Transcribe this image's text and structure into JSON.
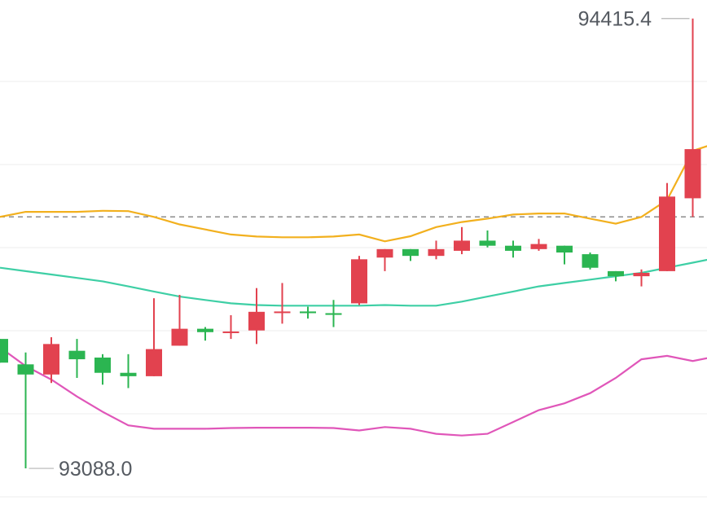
{
  "chart_data": {
    "type": "candlestick",
    "y_range": [
      92980,
      94470
    ],
    "grid": "horizontal",
    "reference_level": 93830,
    "max_label": "94415.4",
    "min_label": "93088.0",
    "colors": {
      "up": "#e2424f",
      "down": "#2bb551",
      "grid": "#eeeeee",
      "reference_line": "#8c8c8c",
      "label_text": "#555a61",
      "upper_band": "#f2b01e",
      "middle_band": "#3ecfa5",
      "lower_band": "#e056b9"
    },
    "candles": [
      {
        "open": 93470,
        "close": 93400,
        "high": 93470,
        "low": 93400
      },
      {
        "open": 93395,
        "close": 93365,
        "high": 93430,
        "low": 93088
      },
      {
        "open": 93365,
        "close": 93455,
        "high": 93475,
        "low": 93340
      },
      {
        "open": 93435,
        "close": 93410,
        "high": 93470,
        "low": 93355
      },
      {
        "open": 93415,
        "close": 93370,
        "high": 93425,
        "low": 93335
      },
      {
        "open": 93370,
        "close": 93360,
        "high": 93425,
        "low": 93325
      },
      {
        "open": 93360,
        "close": 93440,
        "high": 93590,
        "low": 93360
      },
      {
        "open": 93450,
        "close": 93500,
        "high": 93600,
        "low": 93450
      },
      {
        "open": 93500,
        "close": 93490,
        "high": 93505,
        "low": 93465
      },
      {
        "open": 93490,
        "close": 93492,
        "high": 93540,
        "low": 93470
      },
      {
        "open": 93495,
        "close": 93550,
        "high": 93620,
        "low": 93455
      },
      {
        "open": 93550,
        "close": 93551,
        "high": 93635,
        "low": 93515
      },
      {
        "open": 93551,
        "close": 93546,
        "high": 93565,
        "low": 93530
      },
      {
        "open": 93546,
        "close": 93541,
        "high": 93585,
        "low": 93505
      },
      {
        "open": 93575,
        "close": 93705,
        "high": 93715,
        "low": 93570
      },
      {
        "open": 93710,
        "close": 93735,
        "high": 93735,
        "low": 93670
      },
      {
        "open": 93735,
        "close": 93715,
        "high": 93735,
        "low": 93700
      },
      {
        "open": 93715,
        "close": 93735,
        "high": 93760,
        "low": 93705
      },
      {
        "open": 93730,
        "close": 93760,
        "high": 93800,
        "low": 93720
      },
      {
        "open": 93760,
        "close": 93745,
        "high": 93790,
        "low": 93740
      },
      {
        "open": 93745,
        "close": 93730,
        "high": 93760,
        "low": 93710
      },
      {
        "open": 93735,
        "close": 93750,
        "high": 93765,
        "low": 93730
      },
      {
        "open": 93745,
        "close": 93725,
        "high": 93745,
        "low": 93690
      },
      {
        "open": 93720,
        "close": 93680,
        "high": 93725,
        "low": 93675
      },
      {
        "open": 93670,
        "close": 93655,
        "high": 93670,
        "low": 93640
      },
      {
        "open": 93655,
        "close": 93665,
        "high": 93675,
        "low": 93625
      },
      {
        "open": 93670,
        "close": 93890,
        "high": 93930,
        "low": 93670
      },
      {
        "open": 93885,
        "close": 94030,
        "high": 94415.4,
        "low": 93830
      }
    ],
    "upper_band": [
      93830,
      93845,
      93845,
      93845,
      93848,
      93847,
      93830,
      93808,
      93793,
      93778,
      93772,
      93770,
      93770,
      93772,
      93778,
      93758,
      93773,
      93800,
      93815,
      93825,
      93837,
      93840,
      93840,
      93825,
      93810,
      93830,
      93880,
      94025,
      94050
    ],
    "middle_band": [
      93680,
      93670,
      93660,
      93650,
      93640,
      93625,
      93610,
      93595,
      93585,
      93575,
      93570,
      93568,
      93568,
      93568,
      93568,
      93570,
      93568,
      93568,
      93580,
      93595,
      93610,
      93625,
      93635,
      93645,
      93655,
      93665,
      93680,
      93695,
      93710
    ],
    "lower_band": [
      93445,
      93390,
      93350,
      93300,
      93255,
      93215,
      93205,
      93205,
      93205,
      93207,
      93208,
      93208,
      93208,
      93207,
      93200,
      93210,
      93205,
      93190,
      93185,
      93190,
      93225,
      93260,
      93280,
      93310,
      93355,
      93410,
      93420,
      93405,
      93420
    ]
  }
}
